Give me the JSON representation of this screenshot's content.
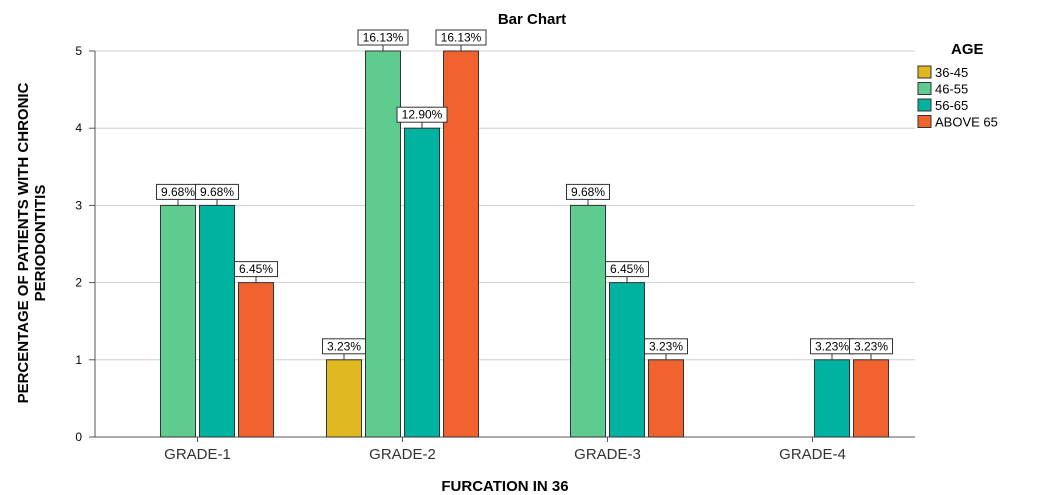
{
  "chart_data": {
    "type": "bar",
    "title": "Bar Chart",
    "xlabel": "FURCATION IN 36",
    "ylabel": "PERCENTAGE OF PATIENTS WITH CHRONIC PERIODONTITIS",
    "ylim": [
      0,
      5
    ],
    "yticks": [
      0,
      1,
      2,
      3,
      4,
      5
    ],
    "grid": true,
    "legend": {
      "title": "AGE",
      "position": "right"
    },
    "categories": [
      "GRADE-1",
      "GRADE-2",
      "GRADE-3",
      "GRADE-4"
    ],
    "series": [
      {
        "name": "36-45",
        "color": "#E0B820",
        "values": [
          0,
          1,
          0,
          0
        ],
        "labels": [
          "",
          "3.23%",
          "",
          ""
        ]
      },
      {
        "name": "46-55",
        "color": "#5ECC8E",
        "values": [
          3,
          5,
          3,
          0
        ],
        "labels": [
          "9.68%",
          "16.13%",
          "9.68%",
          ""
        ]
      },
      {
        "name": "56-65",
        "color": "#00B3A1",
        "values": [
          3,
          4,
          2,
          1
        ],
        "labels": [
          "9.68%",
          "12.90%",
          "6.45%",
          "3.23%"
        ]
      },
      {
        "name": "ABOVE 65",
        "color": "#F0622E",
        "values": [
          2,
          5,
          1,
          1
        ],
        "labels": [
          "6.45%",
          "16.13%",
          "3.23%",
          "3.23%"
        ]
      }
    ]
  }
}
